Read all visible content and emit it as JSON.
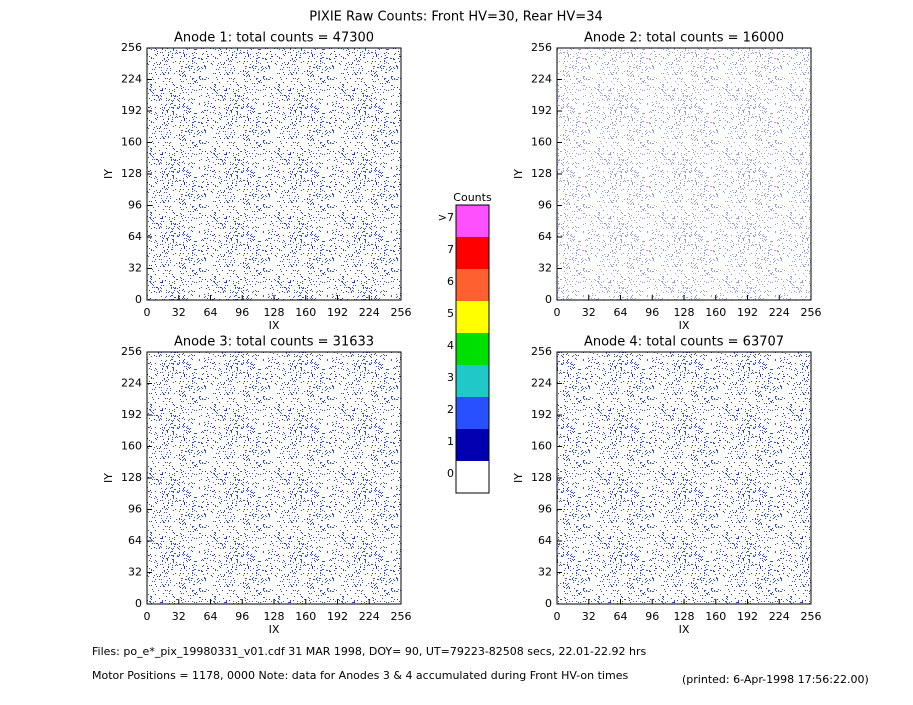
{
  "title": "PIXIE Raw Counts:  Front HV=30, Rear HV=34",
  "chart_data": [
    {
      "type": "heatmap",
      "title": "Anode 1: total counts = 47300",
      "xlabel": "IX",
      "ylabel": "IY",
      "xlim": [
        0,
        256
      ],
      "ylim": [
        0,
        256
      ],
      "xticks": [
        0,
        32,
        64,
        96,
        128,
        160,
        192,
        224,
        256
      ],
      "yticks": [
        0,
        32,
        64,
        96,
        128,
        160,
        192,
        224,
        256
      ]
    },
    {
      "type": "heatmap",
      "title": "Anode 2: total counts = 16000",
      "xlabel": "IX",
      "ylabel": "IY",
      "xlim": [
        0,
        256
      ],
      "ylim": [
        0,
        256
      ],
      "xticks": [
        0,
        32,
        64,
        96,
        128,
        160,
        192,
        224,
        256
      ],
      "yticks": [
        0,
        32,
        64,
        96,
        128,
        160,
        192,
        224,
        256
      ]
    },
    {
      "type": "heatmap",
      "title": "Anode 3: total counts = 31633",
      "xlabel": "IX",
      "ylabel": "IY",
      "xlim": [
        0,
        256
      ],
      "ylim": [
        0,
        256
      ],
      "xticks": [
        0,
        32,
        64,
        96,
        128,
        160,
        192,
        224,
        256
      ],
      "yticks": [
        0,
        32,
        64,
        96,
        128,
        160,
        192,
        224,
        256
      ]
    },
    {
      "type": "heatmap",
      "title": "Anode 4: total counts = 63707",
      "xlabel": "IX",
      "ylabel": "IY",
      "xlim": [
        0,
        256
      ],
      "ylim": [
        0,
        256
      ],
      "xticks": [
        0,
        32,
        64,
        96,
        128,
        160,
        192,
        224,
        256
      ],
      "yticks": [
        0,
        32,
        64,
        96,
        128,
        160,
        192,
        224,
        256
      ]
    }
  ],
  "colorbar": {
    "title": "Counts",
    "labels": [
      "0",
      "1",
      "2",
      "3",
      "4",
      "5",
      "6",
      "7",
      ">7"
    ],
    "colors": [
      "#ffffff",
      "#0000b0",
      "#2850ff",
      "#20c8c8",
      "#00e000",
      "#ffff00",
      "#ff6030",
      "#ff0000",
      "#ff50ff"
    ]
  },
  "footer": {
    "files": "Files: po_e*_pix_19980331_v01.cdf    31 MAR 1998, DOY= 90, UT=79223-82508 secs, 22.01-22.92 hrs",
    "motor": "Motor Positions = 1178, 0000    Note: data for Anodes 3 & 4 accumulated during Front HV-on times",
    "printed": "(printed:  6-Apr-1998 17:56:22.00)"
  }
}
